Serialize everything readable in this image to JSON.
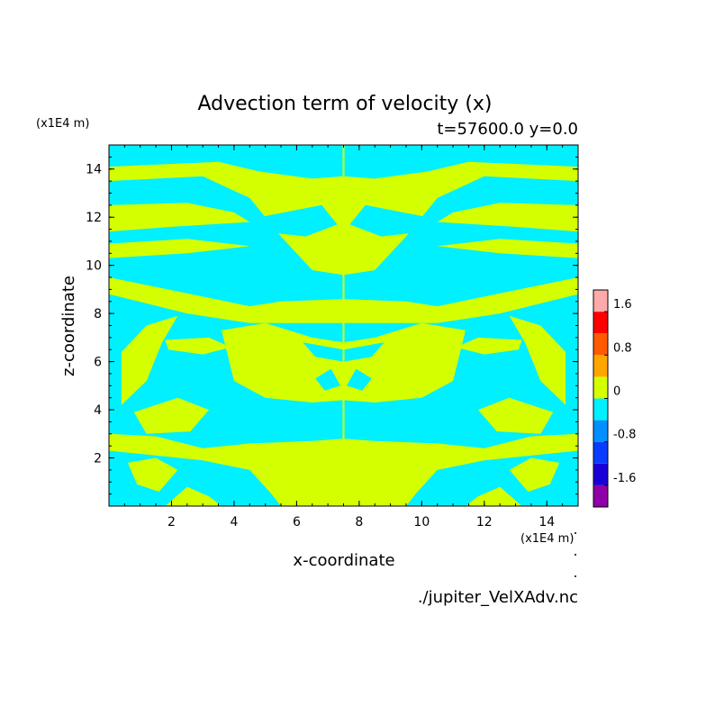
{
  "chart_data": {
    "type": "heatmap",
    "title": "Advection term of velocity (x)",
    "subtitle": "t=57600.0 y=0.0",
    "xlabel": "x-coordinate",
    "ylabel": "z-coordinate",
    "x_unit": "(x1E4 m)",
    "y_unit": "(x1E4 m)",
    "xlim": [
      0,
      15
    ],
    "ylim": [
      0,
      15
    ],
    "xticks": [
      2,
      4,
      6,
      8,
      10,
      12,
      14
    ],
    "yticks": [
      2,
      4,
      6,
      8,
      10,
      12,
      14
    ],
    "colorbar": {
      "levels": [
        -2.0,
        -1.6,
        -1.2,
        -0.8,
        -0.4,
        0,
        0.4,
        0.8,
        1.2,
        1.6,
        2.0
      ],
      "colors": [
        "#8f00a8",
        "#1a00d8",
        "#0a3cff",
        "#0090ff",
        "#00f0ff",
        "#d4ff00",
        "#ffa500",
        "#ff5a00",
        "#ff0000",
        "#ffaaaa"
      ],
      "tick_labels": [
        "-1.6",
        "-0.8",
        "0",
        "0.8",
        "1.6"
      ],
      "tick_values": [
        -1.6,
        -0.8,
        0,
        0.8,
        1.6
      ]
    },
    "background_color": "#00f0ff",
    "positive_color": "#d4ff00",
    "positive_regions": [
      [
        [
          0,
          14.1
        ],
        [
          3.5,
          14.3
        ],
        [
          4.8,
          13.9
        ],
        [
          6.5,
          13.6
        ],
        [
          7.5,
          13.7
        ],
        [
          8.5,
          13.6
        ],
        [
          10.2,
          13.9
        ],
        [
          11.5,
          14.3
        ],
        [
          15,
          14.1
        ],
        [
          15,
          13.5
        ],
        [
          12,
          13.7
        ],
        [
          10.5,
          12.8
        ],
        [
          9.5,
          11.2
        ],
        [
          8.5,
          9.8
        ],
        [
          7.5,
          9.6
        ],
        [
          6.5,
          9.8
        ],
        [
          5.5,
          11.2
        ],
        [
          4.5,
          12.8
        ],
        [
          3,
          13.7
        ],
        [
          0,
          13.5
        ]
      ],
      [
        [
          0,
          12.5
        ],
        [
          2.5,
          12.6
        ],
        [
          4,
          12.2
        ],
        [
          4.5,
          11.8
        ],
        [
          2,
          11.6
        ],
        [
          0,
          11.4
        ]
      ],
      [
        [
          15,
          12.5
        ],
        [
          12.5,
          12.6
        ],
        [
          11,
          12.2
        ],
        [
          10.5,
          11.8
        ],
        [
          13,
          11.6
        ],
        [
          15,
          11.4
        ]
      ],
      [
        [
          0,
          10.9
        ],
        [
          2.5,
          11.1
        ],
        [
          4.5,
          10.8
        ],
        [
          2.5,
          10.5
        ],
        [
          0,
          10.3
        ]
      ],
      [
        [
          15,
          10.9
        ],
        [
          12.5,
          11.1
        ],
        [
          10.5,
          10.8
        ],
        [
          12.5,
          10.5
        ],
        [
          15,
          10.3
        ]
      ],
      [
        [
          0,
          9.5
        ],
        [
          3,
          8.7
        ],
        [
          4.5,
          8.3
        ],
        [
          5.5,
          8.5
        ],
        [
          7.5,
          8.6
        ],
        [
          9.5,
          8.5
        ],
        [
          10.5,
          8.3
        ],
        [
          12,
          8.7
        ],
        [
          15,
          9.5
        ],
        [
          15,
          8.8
        ],
        [
          12.5,
          8.0
        ],
        [
          10.5,
          7.6
        ],
        [
          7.5,
          7.6
        ],
        [
          4.5,
          7.6
        ],
        [
          2.5,
          8.0
        ],
        [
          0,
          8.8
        ]
      ],
      [
        [
          0.4,
          6.4
        ],
        [
          1.2,
          7.5
        ],
        [
          2.2,
          7.9
        ],
        [
          1.7,
          6.8
        ],
        [
          1.2,
          5.2
        ],
        [
          0.4,
          4.2
        ]
      ],
      [
        [
          14.6,
          6.4
        ],
        [
          13.8,
          7.5
        ],
        [
          12.8,
          7.9
        ],
        [
          13.3,
          6.8
        ],
        [
          13.8,
          5.2
        ],
        [
          14.6,
          4.2
        ]
      ],
      [
        [
          1.8,
          6.9
        ],
        [
          3.2,
          7.0
        ],
        [
          3.9,
          6.6
        ],
        [
          3.0,
          6.3
        ],
        [
          1.9,
          6.5
        ]
      ],
      [
        [
          13.2,
          6.9
        ],
        [
          11.8,
          7.0
        ],
        [
          11.1,
          6.6
        ],
        [
          12.0,
          6.3
        ],
        [
          13.1,
          6.5
        ]
      ],
      [
        [
          3.6,
          7.3
        ],
        [
          5.0,
          7.6
        ],
        [
          6.5,
          7.0
        ],
        [
          7.5,
          6.8
        ],
        [
          8.5,
          7.0
        ],
        [
          10.0,
          7.6
        ],
        [
          11.4,
          7.3
        ],
        [
          11.0,
          5.2
        ],
        [
          10.0,
          4.5
        ],
        [
          8.5,
          4.3
        ],
        [
          7.5,
          4.4
        ],
        [
          6.5,
          4.3
        ],
        [
          5.0,
          4.5
        ],
        [
          4.0,
          5.2
        ]
      ],
      [
        [
          0.8,
          3.9
        ],
        [
          2.2,
          4.5
        ],
        [
          3.2,
          4.0
        ],
        [
          2.6,
          3.1
        ],
        [
          1.2,
          3.0
        ]
      ],
      [
        [
          14.2,
          3.9
        ],
        [
          12.8,
          4.5
        ],
        [
          11.8,
          4.0
        ],
        [
          12.4,
          3.1
        ],
        [
          13.8,
          3.0
        ]
      ],
      [
        [
          0,
          3.0
        ],
        [
          1.5,
          2.9
        ],
        [
          3.0,
          2.4
        ],
        [
          4.5,
          2.6
        ],
        [
          6.5,
          2.7
        ],
        [
          7.5,
          2.8
        ],
        [
          8.5,
          2.7
        ],
        [
          10.5,
          2.6
        ],
        [
          12.0,
          2.4
        ],
        [
          13.5,
          2.9
        ],
        [
          15,
          3.0
        ],
        [
          15,
          2.3
        ],
        [
          12,
          1.9
        ],
        [
          10.5,
          1.5
        ],
        [
          9.8,
          0.5
        ],
        [
          9.5,
          0
        ],
        [
          5.5,
          0
        ],
        [
          5.2,
          0.5
        ],
        [
          4.5,
          1.5
        ],
        [
          3,
          1.9
        ],
        [
          0,
          2.3
        ]
      ],
      [
        [
          0.6,
          1.8
        ],
        [
          1.5,
          2.0
        ],
        [
          2.2,
          1.5
        ],
        [
          1.6,
          0.6
        ],
        [
          0.9,
          0.9
        ]
      ],
      [
        [
          14.4,
          1.8
        ],
        [
          13.5,
          2.0
        ],
        [
          12.8,
          1.5
        ],
        [
          13.4,
          0.6
        ],
        [
          14.1,
          0.9
        ]
      ],
      [
        [
          1.8,
          0
        ],
        [
          2.5,
          0.8
        ],
        [
          3.2,
          0.4
        ],
        [
          3.6,
          0
        ]
      ],
      [
        [
          13.2,
          0
        ],
        [
          12.5,
          0.8
        ],
        [
          11.8,
          0.4
        ],
        [
          11.4,
          0
        ]
      ]
    ],
    "negative_holes": [
      [
        [
          6.2,
          3.2
        ],
        [
          7.5,
          3.5
        ],
        [
          8.8,
          3.2
        ],
        [
          8.5,
          4.0
        ],
        [
          7.5,
          4.2
        ],
        [
          6.5,
          4.0
        ]
      ],
      [
        [
          4.8,
          12.0
        ],
        [
          6.8,
          12.5
        ],
        [
          7.3,
          11.7
        ],
        [
          6.3,
          11.2
        ],
        [
          4.9,
          11.4
        ]
      ],
      [
        [
          10.2,
          12.0
        ],
        [
          8.2,
          12.5
        ],
        [
          7.7,
          11.7
        ],
        [
          8.7,
          11.2
        ],
        [
          10.1,
          11.4
        ]
      ],
      [
        [
          6.2,
          6.8
        ],
        [
          7.5,
          6.5
        ],
        [
          8.8,
          6.8
        ],
        [
          8.4,
          6.2
        ],
        [
          7.5,
          6.0
        ],
        [
          6.6,
          6.2
        ]
      ],
      [
        [
          6.6,
          5.3
        ],
        [
          7.1,
          5.7
        ],
        [
          7.4,
          5.0
        ],
        [
          6.9,
          4.8
        ]
      ],
      [
        [
          8.4,
          5.3
        ],
        [
          7.9,
          5.7
        ],
        [
          7.6,
          5.0
        ],
        [
          8.1,
          4.8
        ]
      ]
    ],
    "divider_x": 7.5
  },
  "footer": {
    "source_file": "./jupiter_VelXAdv.nc"
  }
}
